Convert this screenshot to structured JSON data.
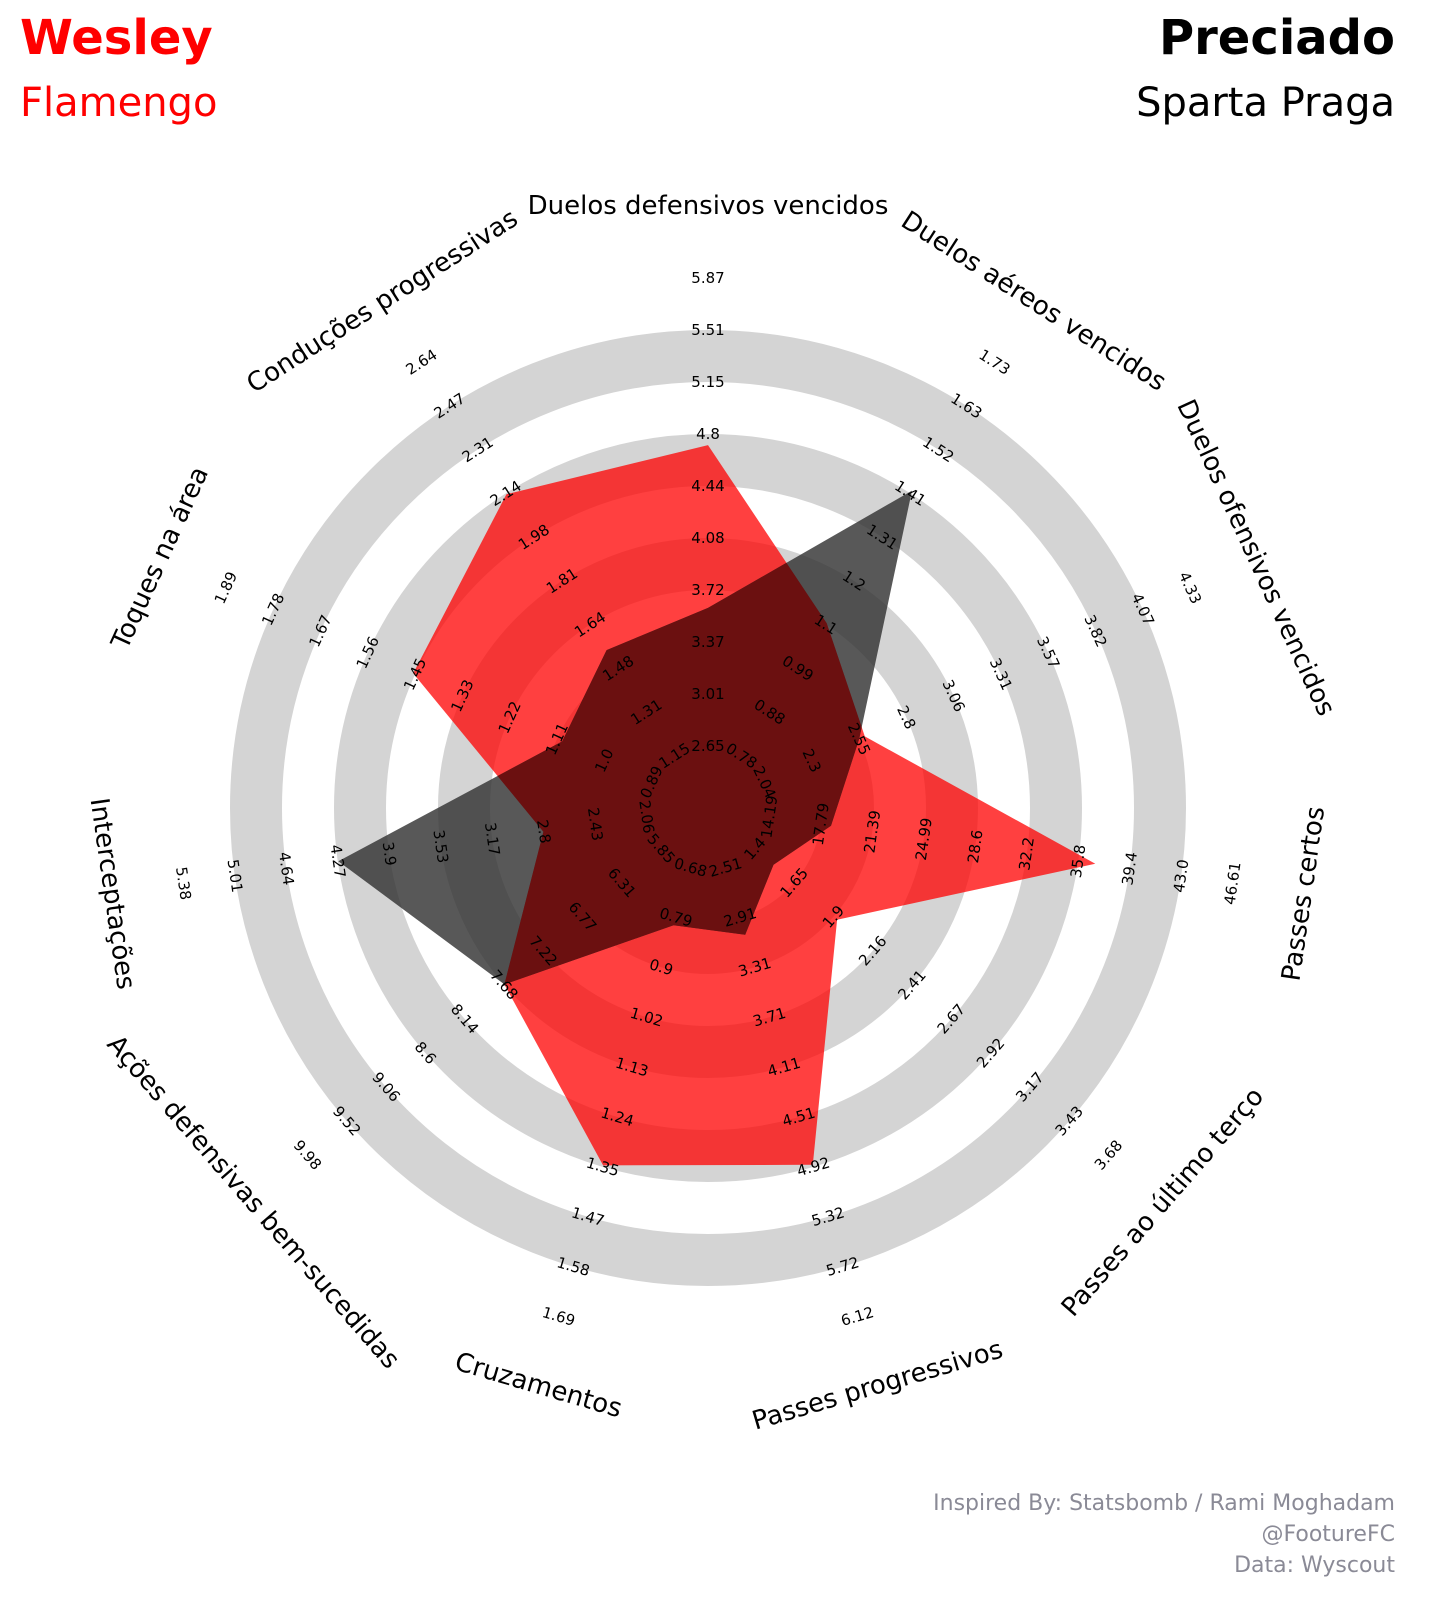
{
  "header": {
    "player1_name": "Wesley",
    "player1_team": "Flamengo",
    "player2_name": "Preciado",
    "player2_team": "Sparta Praga"
  },
  "credits": {
    "line1": "Inspired By: Statsbomb / Rami Moghadam",
    "line2": "@FootureFC",
    "line3": "Data: Wyscout"
  },
  "colors": {
    "player1": "#ff0000",
    "player2": "#333333",
    "overlap": "#6b1010",
    "ring": "#d4d4d4",
    "credits": "#8a8a96"
  },
  "chart_data": {
    "type": "radar",
    "title": "",
    "rings": 10,
    "axes": [
      {
        "label": "Duelos defensivos vencidos",
        "ticks": [
          "2.65",
          "3.01",
          "3.37",
          "3.72",
          "4.08",
          "4.44",
          "4.8",
          "5.15",
          "5.51",
          "5.87"
        ]
      },
      {
        "label": "Duelos aéreos vencidos",
        "ticks": [
          "0.78",
          "0.88",
          "0.99",
          "1.1",
          "1.2",
          "1.31",
          "1.41",
          "1.52",
          "1.63",
          "1.73"
        ]
      },
      {
        "label": "Duelos ofensivos vencidos",
        "ticks": [
          "2.04",
          "2.3",
          "2.55",
          "2.8",
          "3.06",
          "3.31",
          "3.57",
          "3.82",
          "4.07",
          "4.33"
        ]
      },
      {
        "label": "Passes certos",
        "ticks": [
          "14.19",
          "17.79",
          "21.39",
          "24.99",
          "28.6",
          "32.2",
          "35.8",
          "39.4",
          "43.0",
          "46.61"
        ]
      },
      {
        "label": "Passes ao último terço",
        "ticks": [
          "1.4",
          "1.65",
          "1.9",
          "2.16",
          "2.41",
          "2.67",
          "2.92",
          "3.17",
          "3.43",
          "3.68"
        ]
      },
      {
        "label": "Passes progressivos",
        "ticks": [
          "2.51",
          "2.91",
          "3.31",
          "3.71",
          "4.11",
          "4.51",
          "4.92",
          "5.32",
          "5.72",
          "6.12"
        ]
      },
      {
        "label": "Cruzamentos",
        "ticks": [
          "0.68",
          "0.79",
          "0.9",
          "1.02",
          "1.13",
          "1.24",
          "1.35",
          "1.47",
          "1.58",
          "1.69"
        ]
      },
      {
        "label": "Ações defensivas bem-sucedidas",
        "ticks": [
          "5.85",
          "6.31",
          "6.77",
          "7.22",
          "7.68",
          "8.14",
          "8.6",
          "9.06",
          "9.52",
          "9.98"
        ]
      },
      {
        "label": "Interceptações",
        "ticks": [
          "2.06",
          "2.43",
          "2.8",
          "3.17",
          "3.53",
          "3.9",
          "4.27",
          "4.64",
          "5.01",
          "5.38"
        ]
      },
      {
        "label": "Toques na área",
        "ticks": [
          "0.89",
          "1.0",
          "1.11",
          "1.22",
          "1.33",
          "1.45",
          "1.56",
          "1.67",
          "1.78",
          "1.89"
        ]
      },
      {
        "label": "Conduções progressivas",
        "ticks": [
          "1.15",
          "1.31",
          "1.48",
          "1.64",
          "1.81",
          "1.98",
          "2.14",
          "2.31",
          "2.47",
          "2.64"
        ]
      }
    ],
    "series": [
      {
        "name": "Wesley",
        "values": [
          4.72,
          1.1,
          2.58,
          37.0,
          1.93,
          4.9,
          1.35,
          7.68,
          2.8,
          1.45,
          2.14
        ]
      },
      {
        "name": "Preciado",
        "values": [
          3.6,
          1.42,
          2.55,
          18.5,
          1.52,
          3.05,
          0.81,
          7.68,
          4.27,
          1.1,
          1.55
        ]
      }
    ]
  }
}
